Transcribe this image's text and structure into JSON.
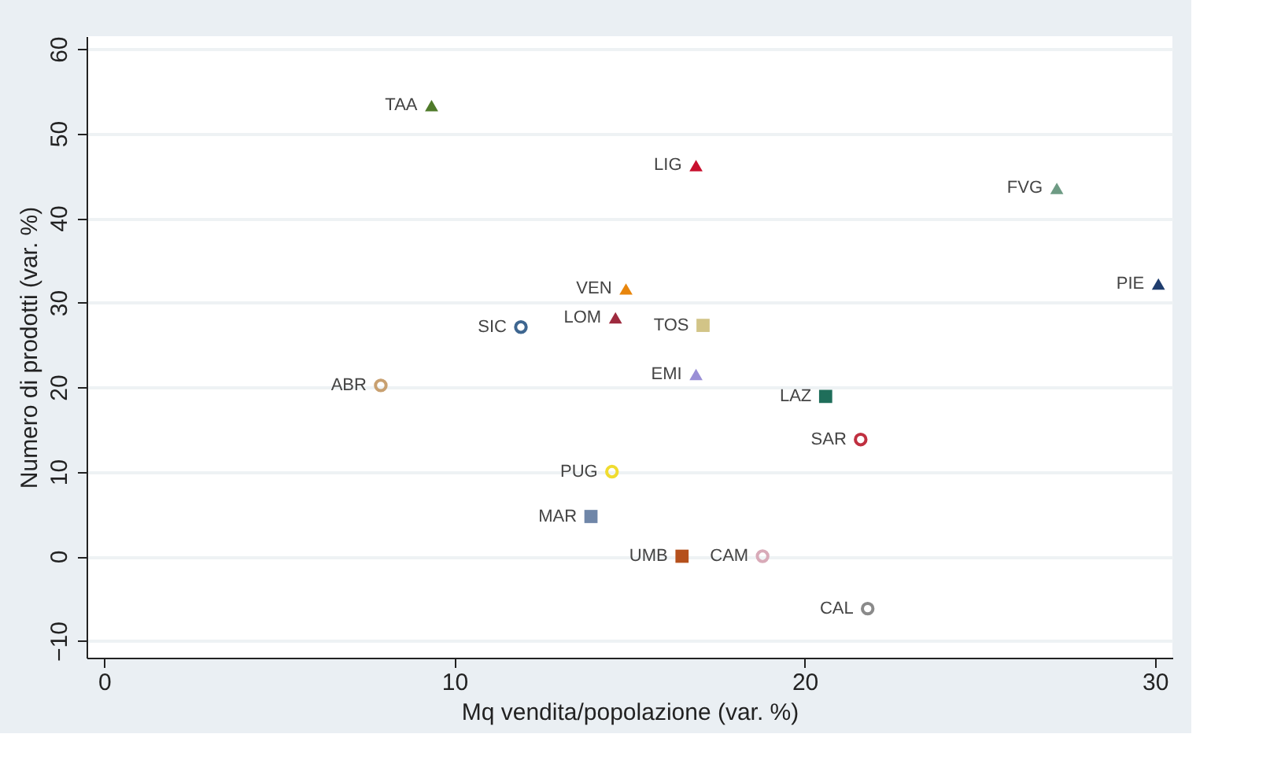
{
  "chart_data": {
    "type": "scatter",
    "xlabel": "Mq vendita/popolazione (var. %)",
    "ylabel": "Numero di prodotti (var. %)",
    "xlim": [
      -0.5,
      30.5
    ],
    "ylim": [
      -12,
      61.5
    ],
    "xticks": [
      0,
      10,
      20,
      30
    ],
    "yticks": [
      -10,
      0,
      10,
      20,
      30,
      40,
      50,
      60
    ],
    "grid": "y",
    "series": [
      {
        "name": "TAA",
        "color": "#4f7a2a",
        "marker": "triangle",
        "x": [
          9.35
        ],
        "values": [
          53.3
        ]
      },
      {
        "name": "LIG",
        "color": "#c8102e",
        "marker": "triangle",
        "x": [
          16.9
        ],
        "values": [
          46.2
        ]
      },
      {
        "name": "FVG",
        "color": "#6e9b84",
        "marker": "triangle",
        "x": [
          27.2
        ],
        "values": [
          43.5
        ]
      },
      {
        "name": "PIE",
        "color": "#1f3d6e",
        "marker": "triangle",
        "x": [
          30.1
        ],
        "values": [
          32.2
        ]
      },
      {
        "name": "VEN",
        "color": "#e8860c",
        "marker": "triangle",
        "x": [
          14.9
        ],
        "values": [
          31.6
        ]
      },
      {
        "name": "LOM",
        "color": "#9e2a3e",
        "marker": "triangle",
        "x": [
          14.6
        ],
        "values": [
          28.2
        ]
      },
      {
        "name": "SIC",
        "color": "#3e6690",
        "marker": "circle",
        "x": [
          11.9
        ],
        "values": [
          27.1
        ]
      },
      {
        "name": "TOS",
        "color": "#d2c487",
        "marker": "square",
        "x": [
          17.1
        ],
        "values": [
          27.3
        ]
      },
      {
        "name": "EMI",
        "color": "#9a8fd6",
        "marker": "triangle",
        "x": [
          16.9
        ],
        "values": [
          21.5
        ]
      },
      {
        "name": "ABR",
        "color": "#c8a070",
        "marker": "circle",
        "x": [
          7.9
        ],
        "values": [
          20.2
        ]
      },
      {
        "name": "LAZ",
        "color": "#1f6e5a",
        "marker": "square",
        "x": [
          20.6
        ],
        "values": [
          18.9
        ]
      },
      {
        "name": "SAR",
        "color": "#c03040",
        "marker": "circle",
        "x": [
          21.6
        ],
        "values": [
          13.8
        ]
      },
      {
        "name": "PUG",
        "color": "#f0dc30",
        "marker": "circle",
        "x": [
          14.5
        ],
        "values": [
          10.0
        ]
      },
      {
        "name": "MAR",
        "color": "#6f86a8",
        "marker": "square",
        "x": [
          13.9
        ],
        "values": [
          4.7
        ]
      },
      {
        "name": "UMB",
        "color": "#b5501c",
        "marker": "square",
        "x": [
          16.5
        ],
        "values": [
          0
        ]
      },
      {
        "name": "CAM",
        "color": "#d8aab8",
        "marker": "circle",
        "x": [
          18.8
        ],
        "values": [
          0
        ]
      },
      {
        "name": "CAL",
        "color": "#8a8a8a",
        "marker": "circle",
        "x": [
          21.8
        ],
        "values": [
          -6.2
        ]
      }
    ]
  }
}
